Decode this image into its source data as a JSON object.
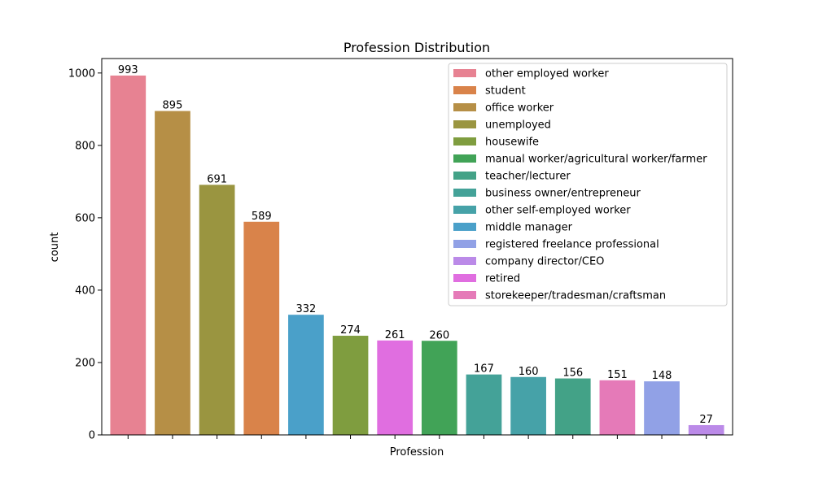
{
  "chart_data": {
    "type": "bar",
    "title": "Profession Distribution",
    "xlabel": "Profession",
    "ylabel": "count",
    "ylim": [
      0,
      1040
    ],
    "yticks": [
      0,
      200,
      400,
      600,
      800,
      1000
    ],
    "grid": false,
    "legend_position": "top-right",
    "bars": [
      {
        "category": "other employed worker",
        "value": 993,
        "color": "#e78292"
      },
      {
        "category": "office worker",
        "value": 895,
        "color": "#b68f46"
      },
      {
        "category": "unemployed",
        "value": 691,
        "color": "#9a9540"
      },
      {
        "category": "student",
        "value": 589,
        "color": "#d9834a"
      },
      {
        "category": "middle manager",
        "value": 332,
        "color": "#4aa0c9"
      },
      {
        "category": "housewife",
        "value": 274,
        "color": "#7f9d3f"
      },
      {
        "category": "retired",
        "value": 261,
        "color": "#e06ee0"
      },
      {
        "category": "manual worker/agricultural worker/farmer",
        "value": 260,
        "color": "#41a357"
      },
      {
        "category": "business owner/entrepreneur",
        "value": 167,
        "color": "#44a298"
      },
      {
        "category": "other self-employed worker",
        "value": 160,
        "color": "#46a2a8"
      },
      {
        "category": "teacher/lecturer",
        "value": 156,
        "color": "#43a287"
      },
      {
        "category": "storekeeper/tradesman/craftsman",
        "value": 151,
        "color": "#e57ab8"
      },
      {
        "category": "registered freelance professional",
        "value": 148,
        "color": "#91a1e6"
      },
      {
        "category": "company director/CEO",
        "value": 27,
        "color": "#bb8ae8"
      }
    ],
    "legend": [
      {
        "label": "other employed worker",
        "color": "#e78292"
      },
      {
        "label": "student",
        "color": "#d9834a"
      },
      {
        "label": "office worker",
        "color": "#b68f46"
      },
      {
        "label": "unemployed",
        "color": "#9a9540"
      },
      {
        "label": "housewife",
        "color": "#7f9d3f"
      },
      {
        "label": "manual worker/agricultural worker/farmer",
        "color": "#41a357"
      },
      {
        "label": "teacher/lecturer",
        "color": "#43a287"
      },
      {
        "label": "business owner/entrepreneur",
        "color": "#44a298"
      },
      {
        "label": "other self-employed worker",
        "color": "#46a2a8"
      },
      {
        "label": "middle manager",
        "color": "#4aa0c9"
      },
      {
        "label": "registered freelance professional",
        "color": "#91a1e6"
      },
      {
        "label": "company director/CEO",
        "color": "#bb8ae8"
      },
      {
        "label": "retired",
        "color": "#e06ee0"
      },
      {
        "label": "storekeeper/tradesman/craftsman",
        "color": "#e57ab8"
      }
    ]
  }
}
